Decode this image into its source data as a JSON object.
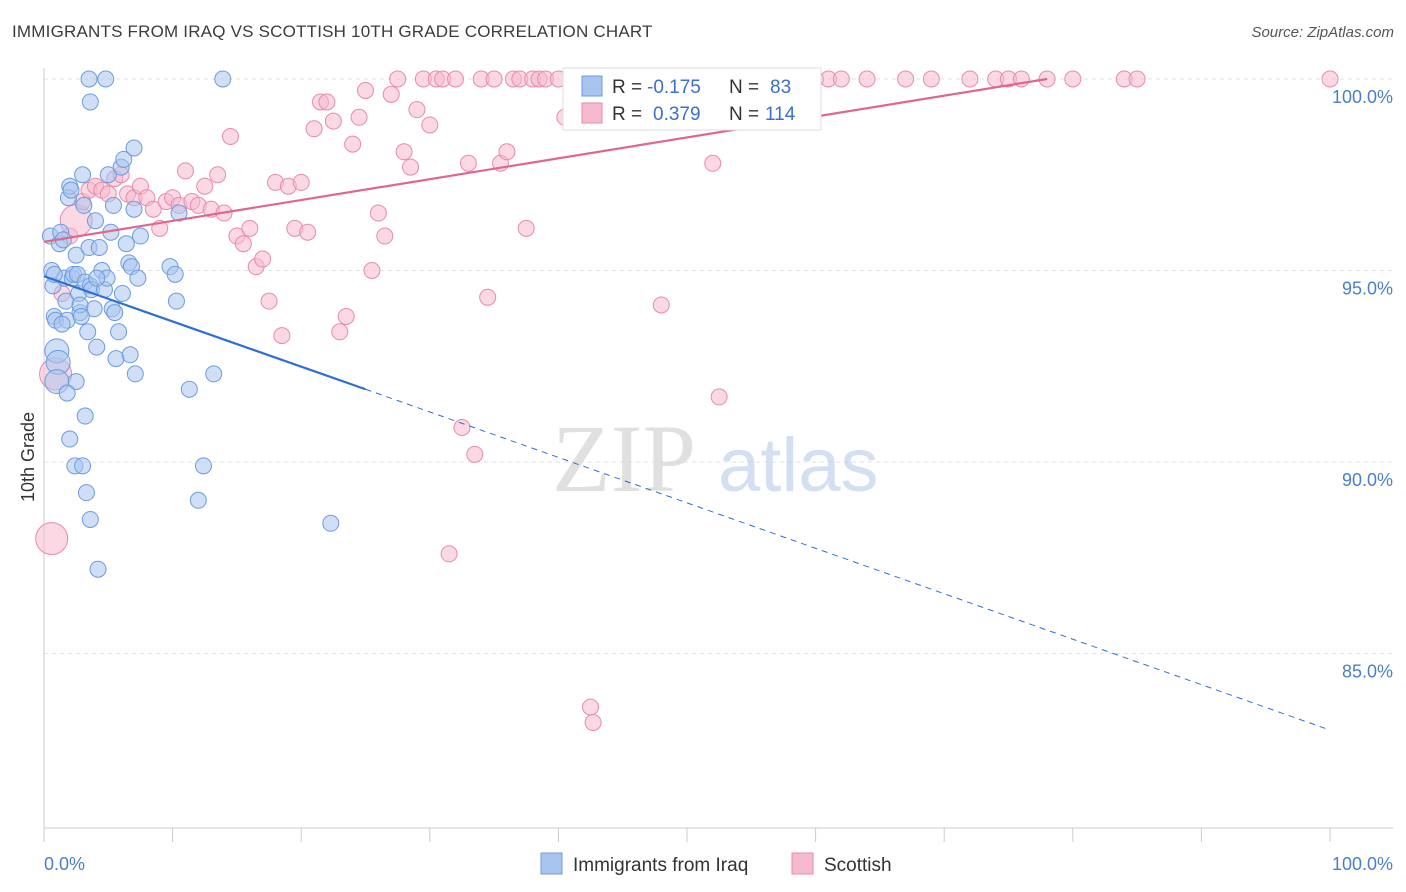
{
  "title": "IMMIGRANTS FROM IRAQ VS SCOTTISH 10TH GRADE CORRELATION CHART",
  "source": "Source: ZipAtlas.com",
  "watermark": {
    "zip": "ZIP",
    "atlas": "atlas"
  },
  "colors": {
    "iraq_fill": "#a9c4ef",
    "iraq_stroke": "#6b9be0",
    "iraq_line": "#2f6fd4",
    "scot_fill": "#f6b9cd",
    "scot_stroke": "#e98aaa",
    "scot_line": "#e0668f",
    "tick_text": "#4a7fc9",
    "grid": "#e2e2e2"
  },
  "legend": {
    "iraq": {
      "r_label": "R =",
      "r_value": "-0.175",
      "n_label": "N =",
      "n_value": "83"
    },
    "scot": {
      "r_label": "R =",
      "r_value": "0.379",
      "n_label": "N =",
      "n_value": "114"
    }
  },
  "chart_data": {
    "type": "scatter",
    "title": "IMMIGRANTS FROM IRAQ VS SCOTTISH 10TH GRADE CORRELATION CHART",
    "xlabel": "",
    "ylabel": "10th Grade",
    "xlim": [
      0,
      100
    ],
    "ylim": [
      80.5,
      100.8
    ],
    "x_tick_labels": [
      "0.0%",
      "100.0%"
    ],
    "y_ticks": [
      85,
      90,
      95,
      100
    ],
    "y_tick_labels": [
      "85.0%",
      "90.0%",
      "95.0%",
      "100.0%"
    ],
    "grid": "horizontal dashed",
    "legend_position": "top-center",
    "series": [
      {
        "name": "Immigrants from Iraq",
        "r": -0.175,
        "n": 83,
        "trend": {
          "x": [
            0,
            25,
            100
          ],
          "y": [
            94.85,
            91.9,
            83.0
          ],
          "solid_until": 25
        },
        "points": [
          [
            0.5,
            95.9
          ],
          [
            0.6,
            95.0
          ],
          [
            0.7,
            94.6
          ],
          [
            0.8,
            93.8
          ],
          [
            0.9,
            93.7
          ],
          [
            1.0,
            92.9
          ],
          [
            1.1,
            92.6
          ],
          [
            1.2,
            95.7
          ],
          [
            1.3,
            96.0
          ],
          [
            1.5,
            95.8
          ],
          [
            1.6,
            94.8
          ],
          [
            1.7,
            94.2
          ],
          [
            1.8,
            93.7
          ],
          [
            1.9,
            96.9
          ],
          [
            2.0,
            97.2
          ],
          [
            2.1,
            97.1
          ],
          [
            2.2,
            94.8
          ],
          [
            2.3,
            94.9
          ],
          [
            2.5,
            95.4
          ],
          [
            2.6,
            94.9
          ],
          [
            2.7,
            94.4
          ],
          [
            2.8,
            93.9
          ],
          [
            3.0,
            97.5
          ],
          [
            3.1,
            96.7
          ],
          [
            3.2,
            94.7
          ],
          [
            3.4,
            93.4
          ],
          [
            3.5,
            95.6
          ],
          [
            3.6,
            94.6
          ],
          [
            3.7,
            94.5
          ],
          [
            3.9,
            94.0
          ],
          [
            4.0,
            96.3
          ],
          [
            4.1,
            93.0
          ],
          [
            4.3,
            95.6
          ],
          [
            4.5,
            95.0
          ],
          [
            4.7,
            94.5
          ],
          [
            4.9,
            94.8
          ],
          [
            5.0,
            97.5
          ],
          [
            5.2,
            96.0
          ],
          [
            5.3,
            94.0
          ],
          [
            5.5,
            93.9
          ],
          [
            5.6,
            92.7
          ],
          [
            5.8,
            93.4
          ],
          [
            6.0,
            97.7
          ],
          [
            6.2,
            97.9
          ],
          [
            6.4,
            95.7
          ],
          [
            6.6,
            95.2
          ],
          [
            6.8,
            95.1
          ],
          [
            7.0,
            98.2
          ],
          [
            7.3,
            94.8
          ],
          [
            7.5,
            95.9
          ],
          [
            3.5,
            100.0
          ],
          [
            4.8,
            100.0
          ],
          [
            3.6,
            99.4
          ],
          [
            13.9,
            100.0
          ],
          [
            7.0,
            96.6
          ],
          [
            1.0,
            92.1
          ],
          [
            2.5,
            92.1
          ],
          [
            1.8,
            91.8
          ],
          [
            3.2,
            91.2
          ],
          [
            2.0,
            90.6
          ],
          [
            2.4,
            89.9
          ],
          [
            3.0,
            89.9
          ],
          [
            3.3,
            89.2
          ],
          [
            3.6,
            88.5
          ],
          [
            4.2,
            87.2
          ],
          [
            6.7,
            92.8
          ],
          [
            7.1,
            92.3
          ],
          [
            9.8,
            95.1
          ],
          [
            10.2,
            94.9
          ],
          [
            10.3,
            94.2
          ],
          [
            10.5,
            96.5
          ],
          [
            11.3,
            91.9
          ],
          [
            12.4,
            89.9
          ],
          [
            12.0,
            89.0
          ],
          [
            13.2,
            92.3
          ],
          [
            22.3,
            88.4
          ],
          [
            4.1,
            94.8
          ],
          [
            2.8,
            94.1
          ],
          [
            1.4,
            93.6
          ],
          [
            5.4,
            96.7
          ],
          [
            6.1,
            94.4
          ],
          [
            2.9,
            93.8
          ],
          [
            0.8,
            94.9
          ]
        ]
      },
      {
        "name": "Scottish",
        "r": 0.379,
        "n": 114,
        "trend": {
          "x": [
            0,
            78
          ],
          "y": [
            95.75,
            100.0
          ]
        },
        "points": [
          [
            0.6,
            88.0
          ],
          [
            0.9,
            92.3
          ],
          [
            1.4,
            94.4
          ],
          [
            2.0,
            95.9
          ],
          [
            2.5,
            96.3
          ],
          [
            3.0,
            96.8
          ],
          [
            3.5,
            97.1
          ],
          [
            4.0,
            97.2
          ],
          [
            4.5,
            97.1
          ],
          [
            5.0,
            97.0
          ],
          [
            5.5,
            97.4
          ],
          [
            6.0,
            97.5
          ],
          [
            6.5,
            97.0
          ],
          [
            7.0,
            96.9
          ],
          [
            7.5,
            97.2
          ],
          [
            8.0,
            96.9
          ],
          [
            8.5,
            96.6
          ],
          [
            9.0,
            96.1
          ],
          [
            9.5,
            96.8
          ],
          [
            10.0,
            96.9
          ],
          [
            10.5,
            96.7
          ],
          [
            11.0,
            97.6
          ],
          [
            11.5,
            96.8
          ],
          [
            12.0,
            96.7
          ],
          [
            12.5,
            97.2
          ],
          [
            13.0,
            96.6
          ],
          [
            13.5,
            97.5
          ],
          [
            14.0,
            96.5
          ],
          [
            14.5,
            98.5
          ],
          [
            15.0,
            95.9
          ],
          [
            15.5,
            95.7
          ],
          [
            16.0,
            96.1
          ],
          [
            16.5,
            95.1
          ],
          [
            17.0,
            95.3
          ],
          [
            17.5,
            94.2
          ],
          [
            18.0,
            97.3
          ],
          [
            18.5,
            93.3
          ],
          [
            19.0,
            97.2
          ],
          [
            19.5,
            96.1
          ],
          [
            20.0,
            97.3
          ],
          [
            20.5,
            96.0
          ],
          [
            21.0,
            98.7
          ],
          [
            21.5,
            99.4
          ],
          [
            22.0,
            99.4
          ],
          [
            22.5,
            98.9
          ],
          [
            23.0,
            93.4
          ],
          [
            23.5,
            93.8
          ],
          [
            24.0,
            98.3
          ],
          [
            24.5,
            99.0
          ],
          [
            25.0,
            99.7
          ],
          [
            25.5,
            95.0
          ],
          [
            26.0,
            96.5
          ],
          [
            26.5,
            95.9
          ],
          [
            27.0,
            99.6
          ],
          [
            27.5,
            100.0
          ],
          [
            28.0,
            98.1
          ],
          [
            28.5,
            97.7
          ],
          [
            29.0,
            99.2
          ],
          [
            29.5,
            100.0
          ],
          [
            30.0,
            98.8
          ],
          [
            30.5,
            100.0
          ],
          [
            31.0,
            100.0
          ],
          [
            31.5,
            87.6
          ],
          [
            32.0,
            100.0
          ],
          [
            32.5,
            90.9
          ],
          [
            33.0,
            97.8
          ],
          [
            33.5,
            90.2
          ],
          [
            34.0,
            100.0
          ],
          [
            34.5,
            94.3
          ],
          [
            35.0,
            100.0
          ],
          [
            35.5,
            97.8
          ],
          [
            36.0,
            98.1
          ],
          [
            36.5,
            100.0
          ],
          [
            37.0,
            100.0
          ],
          [
            37.5,
            96.1
          ],
          [
            38.0,
            100.0
          ],
          [
            38.5,
            100.0
          ],
          [
            39.0,
            100.0
          ],
          [
            40.0,
            100.0
          ],
          [
            40.5,
            99.0
          ],
          [
            41.0,
            100.0
          ],
          [
            42.0,
            100.0
          ],
          [
            42.5,
            83.6
          ],
          [
            42.7,
            83.2
          ],
          [
            43.0,
            100.0
          ],
          [
            44.0,
            100.0
          ],
          [
            45.0,
            100.0
          ],
          [
            46.0,
            100.0
          ],
          [
            47.0,
            100.0
          ],
          [
            48.0,
            94.1
          ],
          [
            49.0,
            100.0
          ],
          [
            50.0,
            100.0
          ],
          [
            51.0,
            100.0
          ],
          [
            52.0,
            97.8
          ],
          [
            52.5,
            91.7
          ],
          [
            53.0,
            100.0
          ],
          [
            54.0,
            100.0
          ],
          [
            56.0,
            100.0
          ],
          [
            58.0,
            100.0
          ],
          [
            60.0,
            100.0
          ],
          [
            61.0,
            100.0
          ],
          [
            62.0,
            100.0
          ],
          [
            64.0,
            100.0
          ],
          [
            67.0,
            100.0
          ],
          [
            69.0,
            100.0
          ],
          [
            72.0,
            100.0
          ],
          [
            74.0,
            100.0
          ],
          [
            75.0,
            100.0
          ],
          [
            76.0,
            100.0
          ],
          [
            78.0,
            100.0
          ],
          [
            80.0,
            100.0
          ],
          [
            84.0,
            100.0
          ],
          [
            85.0,
            100.0
          ],
          [
            100.0,
            100.0
          ]
        ]
      }
    ]
  }
}
